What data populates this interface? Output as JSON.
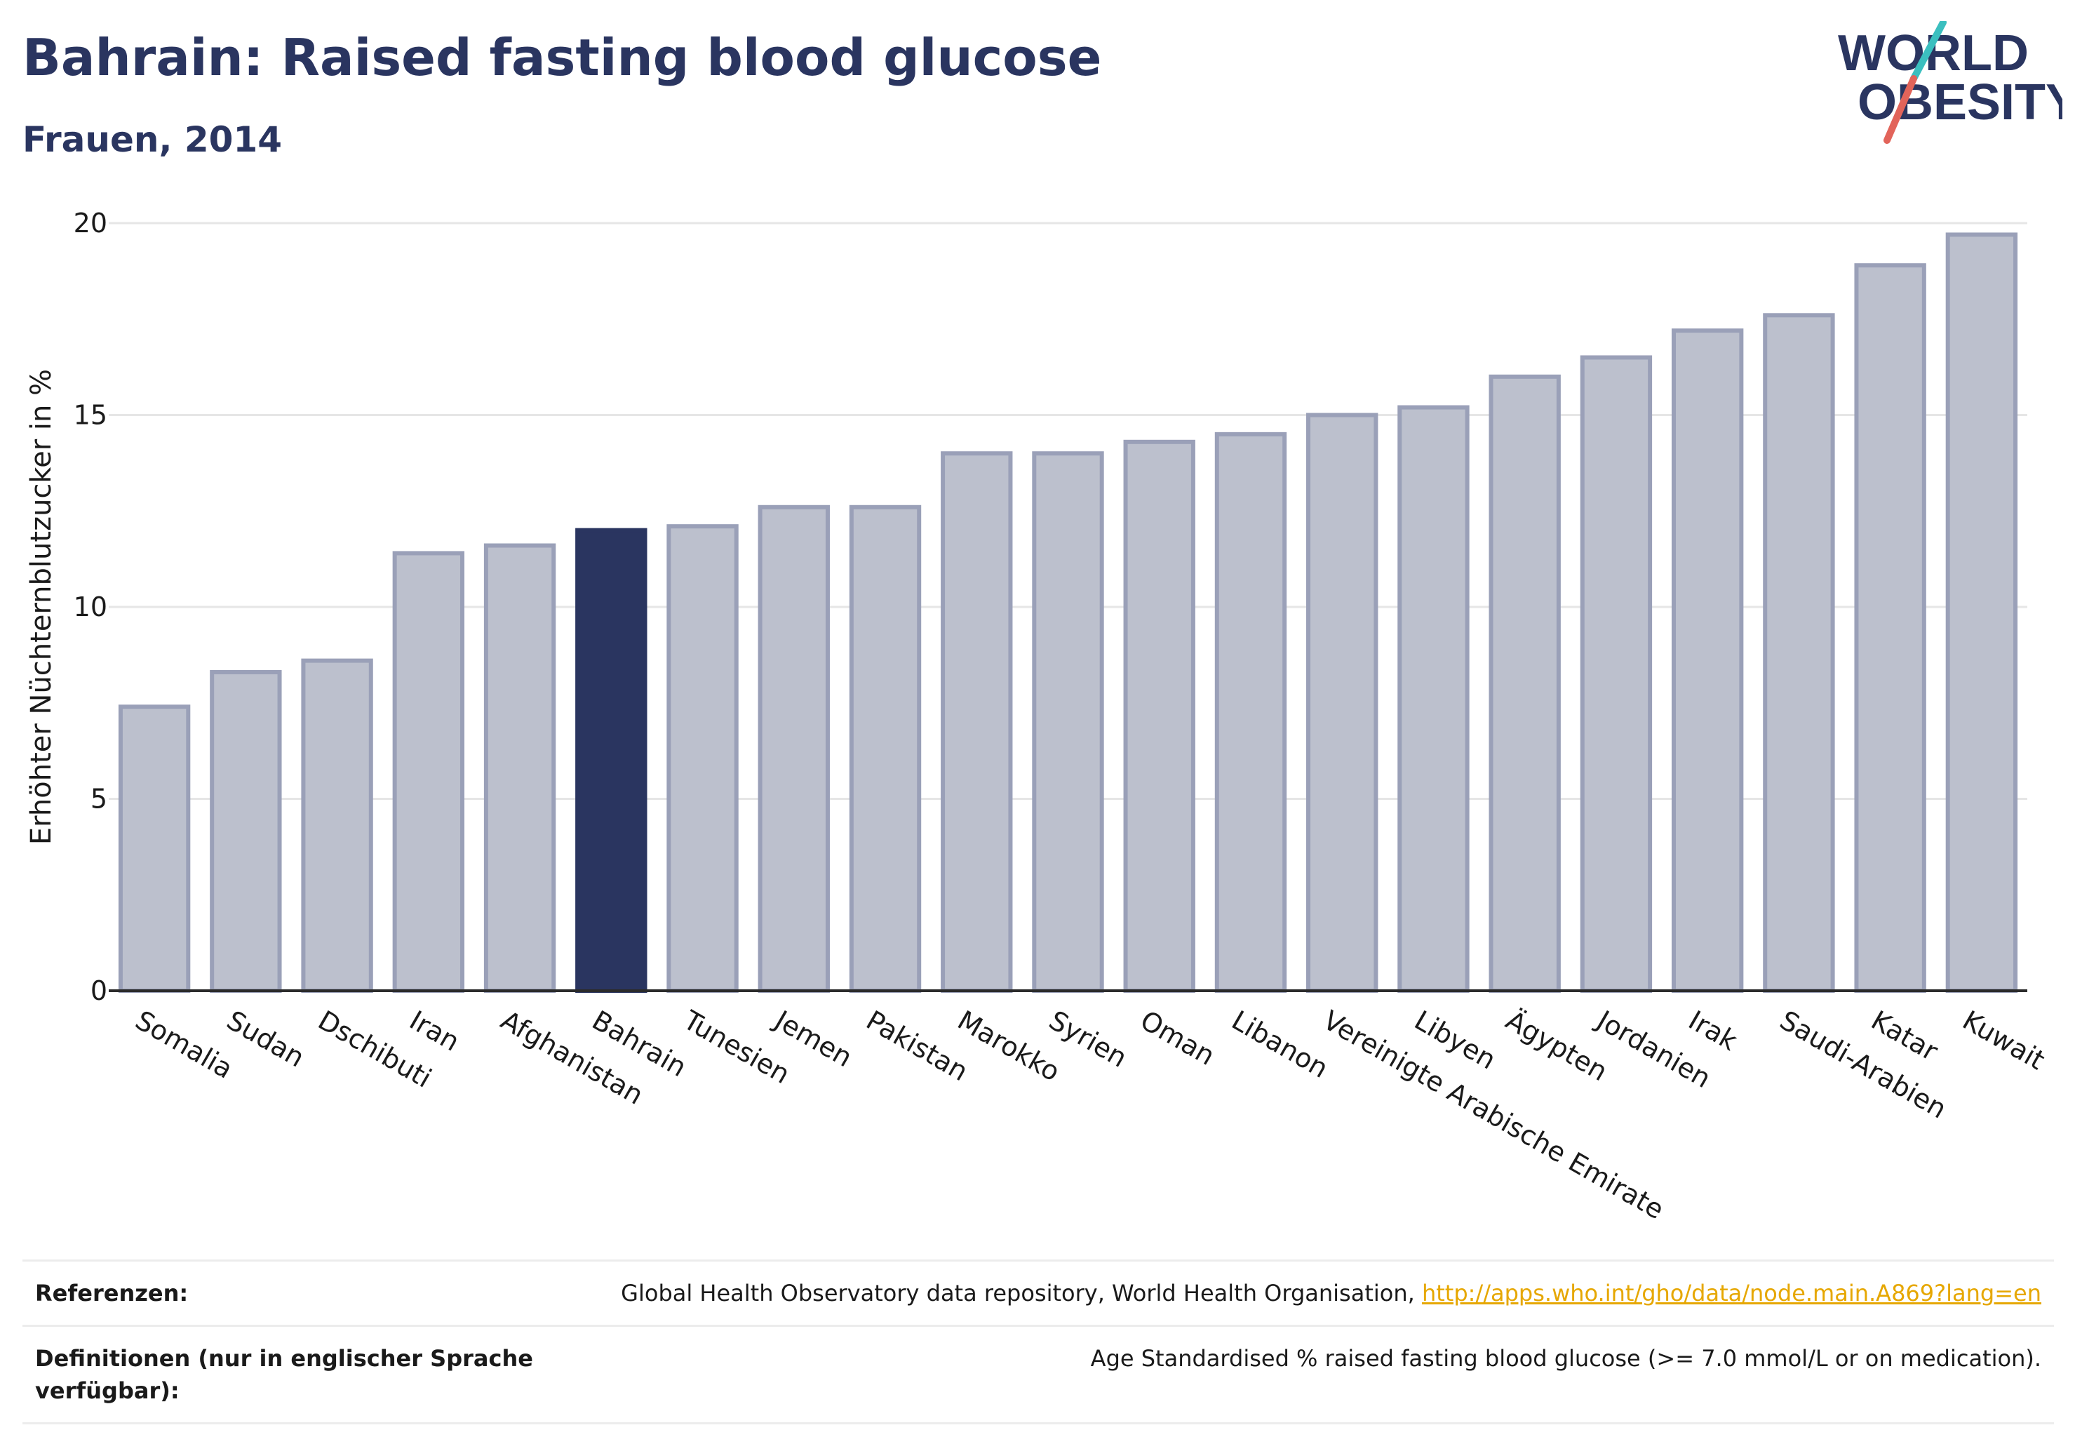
{
  "header": {
    "title": "Bahrain: Raised fasting blood glucose",
    "subtitle": "Frauen, 2014"
  },
  "logo": {
    "line1": "WORLD",
    "line2": "OBESITY",
    "colors": {
      "text": "#2a3560",
      "stroke_teal": "#3bbfbf",
      "stroke_coral": "#e2645a"
    }
  },
  "chart_data": {
    "type": "bar",
    "title": "",
    "ylabel": "Erhöhter Nüchternblutzucker in %",
    "xlabel": "",
    "ylim": [
      0,
      20
    ],
    "yticks": [
      0,
      5,
      10,
      15,
      20
    ],
    "grid": true,
    "highlight": "Bahrain",
    "colors": {
      "bar": "#bcc0cd",
      "bar_border": "#9aa0b8",
      "highlight": "#2a3560",
      "grid": "#e6e6e6"
    },
    "categories": [
      "Somalia",
      "Sudan",
      "Dschibuti",
      "Iran",
      "Afghanistan",
      "Bahrain",
      "Tunesien",
      "Jemen",
      "Pakistan",
      "Marokko",
      "Syrien",
      "Oman",
      "Libanon",
      "Vereinigte Arabische Emirate",
      "Libyen",
      "Ägypten",
      "Jordanien",
      "Irak",
      "Saudi-Arabien",
      "Katar",
      "Kuwait"
    ],
    "values": [
      7.4,
      8.3,
      8.6,
      11.4,
      11.6,
      12.0,
      12.1,
      12.6,
      12.6,
      14.0,
      14.0,
      14.3,
      14.5,
      15.0,
      15.2,
      16.0,
      16.5,
      17.2,
      17.6,
      18.9,
      19.7
    ]
  },
  "references": {
    "ref_label": "Referenzen:",
    "ref_text": "Global Health Observatory data repository, World Health Organisation, ",
    "ref_link": "http://apps.who.int/gho/data/node.main.A869?lang=en",
    "def_label": "Definitionen (nur in englischer Sprache verfügbar):",
    "def_text": "Age Standardised % raised fasting blood glucose (>= 7.0 mmol/L or on medication)."
  }
}
